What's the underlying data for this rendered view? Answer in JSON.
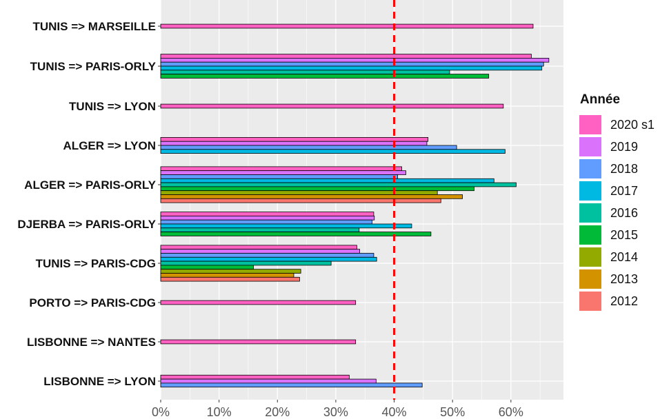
{
  "chart_data": {
    "type": "bar",
    "orientation": "horizontal",
    "title": "",
    "xlabel": "",
    "ylabel": "",
    "xlim": [
      0,
      0.69
    ],
    "x_ticks": [
      0,
      0.1,
      0.2,
      0.3,
      0.4,
      0.5,
      0.6
    ],
    "x_tick_labels": [
      "0%",
      "10%",
      "20%",
      "30%",
      "40%",
      "50%",
      "60%"
    ],
    "grid": true,
    "reference_line": {
      "value": 0.4,
      "style": "dashed",
      "color": "#ff0000"
    },
    "legend": {
      "title": "Année",
      "position": "right",
      "entries": [
        {
          "name": "2020 s1",
          "color": "#ff61c3"
        },
        {
          "name": "2019",
          "color": "#db72fb"
        },
        {
          "name": "2018",
          "color": "#619cff"
        },
        {
          "name": "2017",
          "color": "#00b9e3"
        },
        {
          "name": "2016",
          "color": "#00c19f"
        },
        {
          "name": "2015",
          "color": "#00ba38"
        },
        {
          "name": "2014",
          "color": "#93aa00"
        },
        {
          "name": "2013",
          "color": "#d39200"
        },
        {
          "name": "2012",
          "color": "#f8766d"
        }
      ]
    },
    "categories": [
      "TUNIS => MARSEILLE",
      "TUNIS => PARIS-ORLY",
      "TUNIS => LYON",
      "ALGER => LYON",
      "ALGER => PARIS-ORLY",
      "DJERBA => PARIS-ORLY",
      "TUNIS => PARIS-CDG",
      "PORTO => PARIS-CDG",
      "LISBONNE => NANTES",
      "LISBONNE => LYON"
    ],
    "series": [
      {
        "name": "2020 s1",
        "values": [
          0.638,
          0.635,
          0.587,
          0.458,
          0.413,
          0.365,
          0.336,
          0.334,
          0.334,
          0.323
        ]
      },
      {
        "name": "2019",
        "values": [
          null,
          0.665,
          null,
          0.456,
          0.42,
          0.366,
          0.341,
          null,
          null,
          0.369
        ]
      },
      {
        "name": "2018",
        "values": [
          null,
          0.656,
          null,
          0.507,
          0.406,
          0.362,
          0.365,
          null,
          null,
          0.448
        ]
      },
      {
        "name": "2017",
        "values": [
          null,
          0.653,
          null,
          0.59,
          0.571,
          0.43,
          0.37,
          null,
          null,
          null
        ]
      },
      {
        "name": "2016",
        "values": [
          null,
          0.495,
          null,
          null,
          0.609,
          0.34,
          0.292,
          null,
          null,
          null
        ]
      },
      {
        "name": "2015",
        "values": [
          null,
          0.562,
          null,
          null,
          0.537,
          0.463,
          0.159,
          null,
          null,
          null
        ]
      },
      {
        "name": "2014",
        "values": [
          null,
          null,
          null,
          null,
          0.474,
          null,
          0.24,
          null,
          null,
          null
        ]
      },
      {
        "name": "2013",
        "values": [
          null,
          null,
          null,
          null,
          0.517,
          null,
          0.228,
          null,
          null,
          null
        ]
      },
      {
        "name": "2012",
        "values": [
          null,
          null,
          null,
          null,
          0.48,
          null,
          0.238,
          null,
          null,
          null
        ]
      }
    ]
  }
}
